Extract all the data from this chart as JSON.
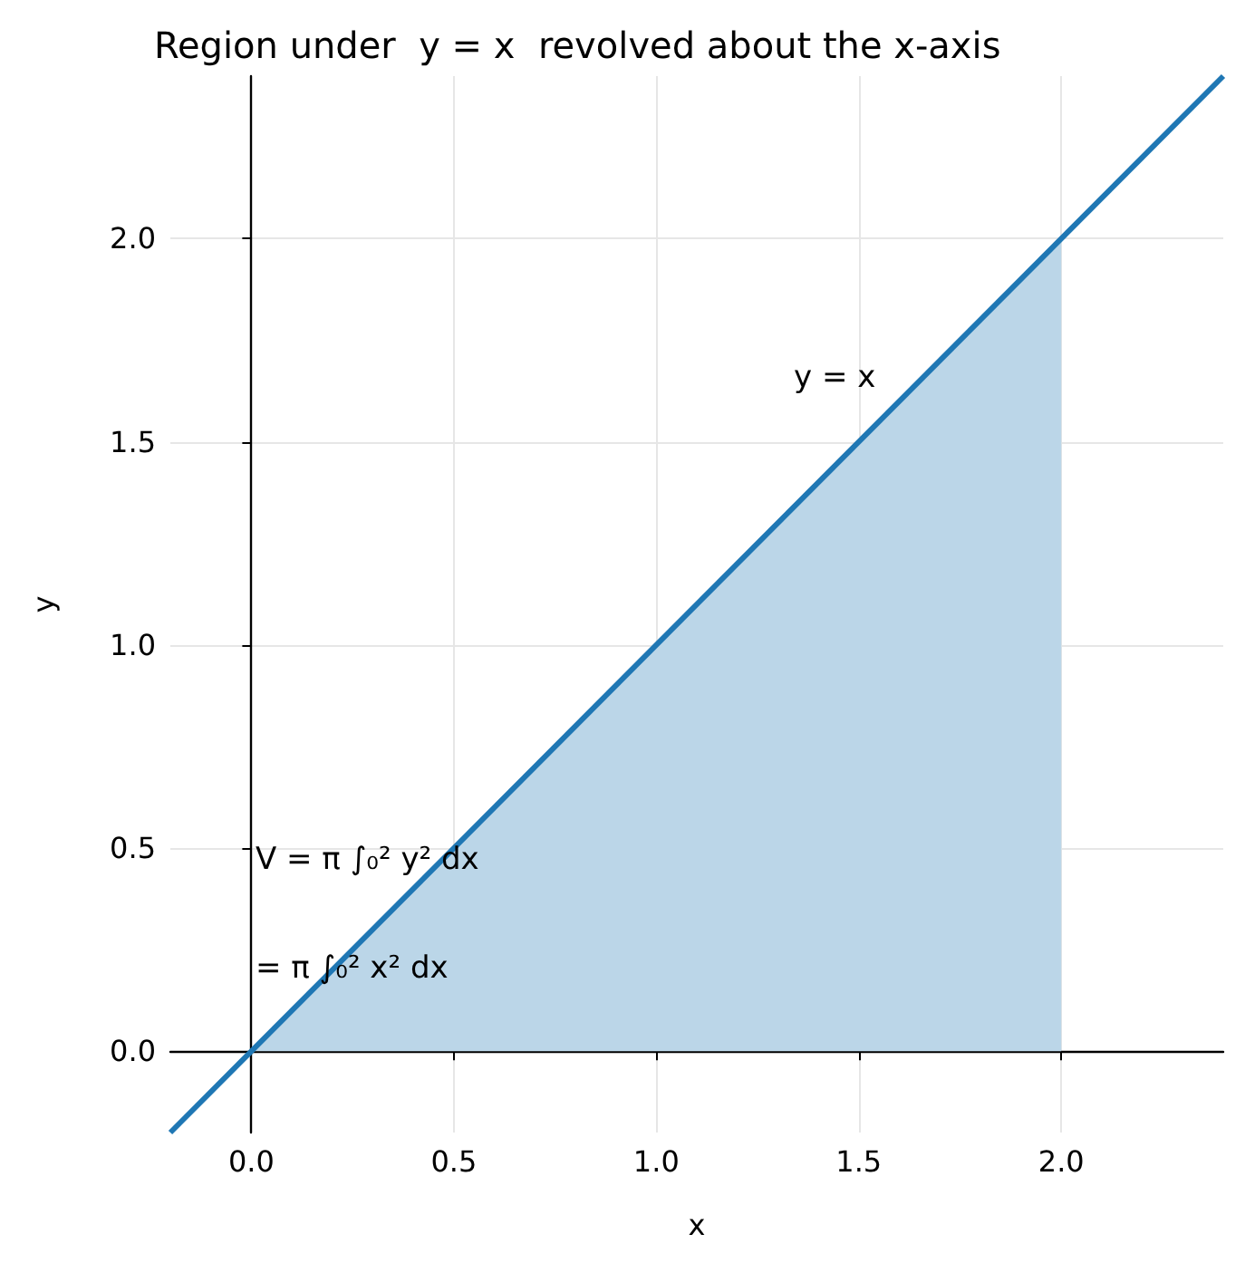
{
  "chart_data": {
    "type": "line",
    "title": "Region under  y = x  revolved about the x-axis",
    "xlabel": "x",
    "ylabel": "y",
    "series": [
      {
        "type": "area",
        "color": "#bbd6e8",
        "x": [
          0,
          2
        ],
        "values": [
          0,
          2
        ]
      },
      {
        "color": "#1f77b4",
        "x": [
          -0.2,
          2.4
        ],
        "values": [
          -0.2,
          2.4
        ]
      }
    ],
    "xlim": [
      -0.2,
      2.4
    ],
    "ylim": [
      -0.2,
      2.4
    ],
    "xticks": [
      {
        "value": 0,
        "label": "0.0"
      },
      {
        "value": 0.5,
        "label": "0.5"
      },
      {
        "value": 1,
        "label": "1.0"
      },
      {
        "value": 1.5,
        "label": "1.5"
      },
      {
        "value": 2,
        "label": "2.0"
      }
    ],
    "yticks": [
      {
        "value": 0,
        "label": "0.0"
      },
      {
        "value": 0.5,
        "label": "0.5"
      },
      {
        "value": 1,
        "label": "1.0"
      },
      {
        "value": 1.5,
        "label": "1.5"
      },
      {
        "value": 2,
        "label": "2.0"
      }
    ],
    "grid": true,
    "marker": "none",
    "annotations": [
      "y = x",
      "V = π ∫₀² y² dx",
      "= π ∫₀² x² dx"
    ]
  }
}
